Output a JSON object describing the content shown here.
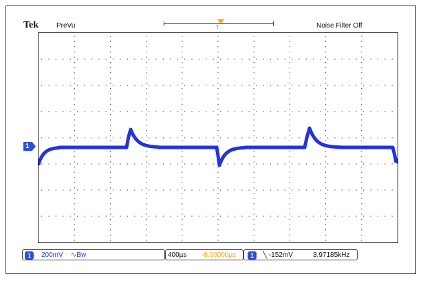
{
  "header": {
    "brand": "Tek",
    "mode": "PreVu",
    "noise_filter": "Noise Filter Off",
    "trigger_tag": "T"
  },
  "channel_marker": "1",
  "status": {
    "ch1_number": "1",
    "ch1_scale": "200mV",
    "ch1_coupling": "∿Bw",
    "timebase": "400µs",
    "position": "-8.00000µs",
    "trig_ch_number": "1",
    "trig_level": "╲ -152mV",
    "frequency": "3.97185kHz"
  },
  "colors": {
    "trace": "#2233dd",
    "accent_orange": "#f5a623",
    "grid_dots": "#222222"
  },
  "waveform_icon": "ch1-trace"
}
